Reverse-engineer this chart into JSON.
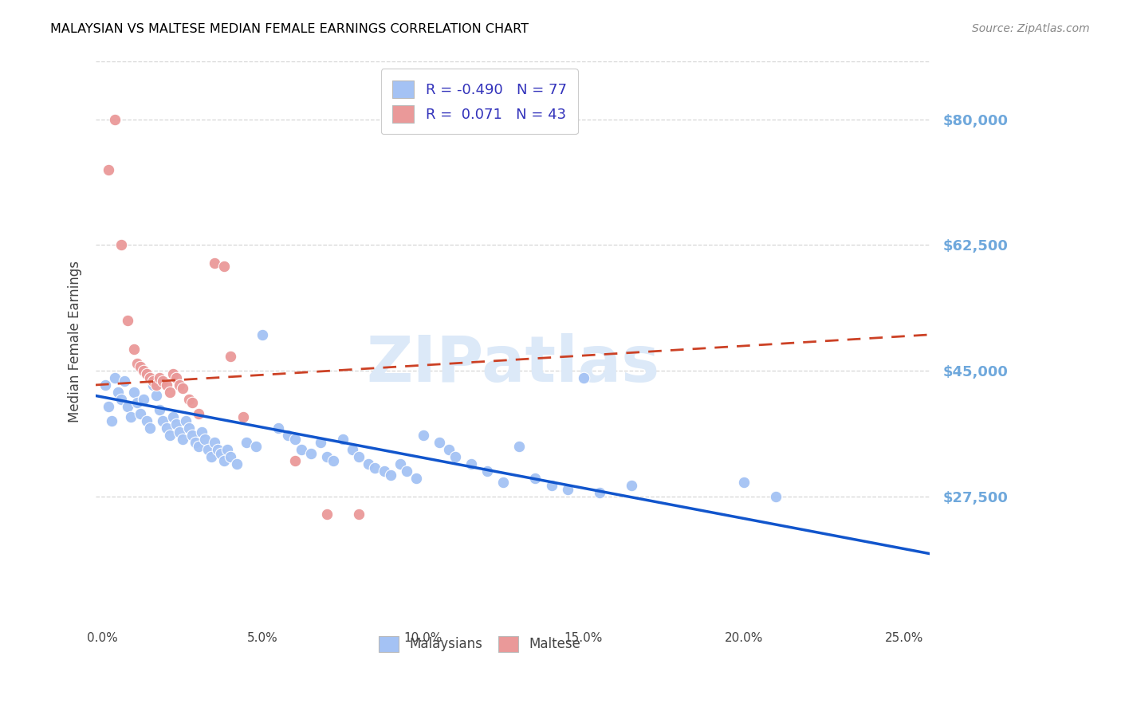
{
  "title": "MALAYSIAN VS MALTESE MEDIAN FEMALE EARNINGS CORRELATION CHART",
  "source": "Source: ZipAtlas.com",
  "ylabel": "Median Female Earnings",
  "xlabel_ticks": [
    "0.0%",
    "5.0%",
    "10.0%",
    "15.0%",
    "20.0%",
    "25.0%"
  ],
  "xlabel_vals": [
    0.0,
    0.05,
    0.1,
    0.15,
    0.2,
    0.25
  ],
  "ylim": [
    10000,
    88000
  ],
  "xlim": [
    -0.002,
    0.258
  ],
  "ytick_vals": [
    27500,
    45000,
    62500,
    80000
  ],
  "ytick_labels": [
    "$27,500",
    "$45,000",
    "$62,500",
    "$80,000"
  ],
  "legend_r_blue": "-0.490",
  "legend_n_blue": "77",
  "legend_r_pink": " 0.071",
  "legend_n_pink": "43",
  "blue_color": "#a4c2f4",
  "pink_color": "#ea9999",
  "line_blue_color": "#1155cc",
  "line_pink_color": "#cc4125",
  "blue_line": [
    [
      -0.002,
      41500
    ],
    [
      0.258,
      19500
    ]
  ],
  "pink_line": [
    [
      -0.002,
      43000
    ],
    [
      0.258,
      50000
    ]
  ],
  "blue_scatter": [
    [
      0.001,
      43000
    ],
    [
      0.002,
      40000
    ],
    [
      0.003,
      38000
    ],
    [
      0.004,
      44000
    ],
    [
      0.005,
      42000
    ],
    [
      0.006,
      41000
    ],
    [
      0.007,
      43500
    ],
    [
      0.008,
      40000
    ],
    [
      0.009,
      38500
    ],
    [
      0.01,
      42000
    ],
    [
      0.011,
      40500
    ],
    [
      0.012,
      39000
    ],
    [
      0.013,
      41000
    ],
    [
      0.014,
      38000
    ],
    [
      0.015,
      37000
    ],
    [
      0.016,
      43000
    ],
    [
      0.017,
      41500
    ],
    [
      0.018,
      39500
    ],
    [
      0.019,
      38000
    ],
    [
      0.02,
      37000
    ],
    [
      0.021,
      36000
    ],
    [
      0.022,
      38500
    ],
    [
      0.023,
      37500
    ],
    [
      0.024,
      36500
    ],
    [
      0.025,
      35500
    ],
    [
      0.026,
      38000
    ],
    [
      0.027,
      37000
    ],
    [
      0.028,
      36000
    ],
    [
      0.029,
      35000
    ],
    [
      0.03,
      34500
    ],
    [
      0.031,
      36500
    ],
    [
      0.032,
      35500
    ],
    [
      0.033,
      34000
    ],
    [
      0.034,
      33000
    ],
    [
      0.035,
      35000
    ],
    [
      0.036,
      34000
    ],
    [
      0.037,
      33500
    ],
    [
      0.038,
      32500
    ],
    [
      0.039,
      34000
    ],
    [
      0.04,
      33000
    ],
    [
      0.042,
      32000
    ],
    [
      0.045,
      35000
    ],
    [
      0.048,
      34500
    ],
    [
      0.05,
      50000
    ],
    [
      0.055,
      37000
    ],
    [
      0.058,
      36000
    ],
    [
      0.06,
      35500
    ],
    [
      0.062,
      34000
    ],
    [
      0.065,
      33500
    ],
    [
      0.068,
      35000
    ],
    [
      0.07,
      33000
    ],
    [
      0.072,
      32500
    ],
    [
      0.075,
      35500
    ],
    [
      0.078,
      34000
    ],
    [
      0.08,
      33000
    ],
    [
      0.083,
      32000
    ],
    [
      0.085,
      31500
    ],
    [
      0.088,
      31000
    ],
    [
      0.09,
      30500
    ],
    [
      0.093,
      32000
    ],
    [
      0.095,
      31000
    ],
    [
      0.098,
      30000
    ],
    [
      0.1,
      36000
    ],
    [
      0.105,
      35000
    ],
    [
      0.108,
      34000
    ],
    [
      0.11,
      33000
    ],
    [
      0.115,
      32000
    ],
    [
      0.12,
      31000
    ],
    [
      0.125,
      29500
    ],
    [
      0.13,
      34500
    ],
    [
      0.135,
      30000
    ],
    [
      0.14,
      29000
    ],
    [
      0.145,
      28500
    ],
    [
      0.15,
      44000
    ],
    [
      0.155,
      28000
    ],
    [
      0.165,
      29000
    ],
    [
      0.2,
      29500
    ],
    [
      0.21,
      27500
    ]
  ],
  "pink_scatter": [
    [
      0.002,
      73000
    ],
    [
      0.004,
      80000
    ],
    [
      0.006,
      62500
    ],
    [
      0.008,
      52000
    ],
    [
      0.01,
      48000
    ],
    [
      0.011,
      46000
    ],
    [
      0.012,
      45500
    ],
    [
      0.013,
      45000
    ],
    [
      0.014,
      44500
    ],
    [
      0.015,
      44000
    ],
    [
      0.016,
      43500
    ],
    [
      0.017,
      43000
    ],
    [
      0.018,
      44000
    ],
    [
      0.019,
      43500
    ],
    [
      0.02,
      43000
    ],
    [
      0.021,
      42000
    ],
    [
      0.022,
      44500
    ],
    [
      0.023,
      44000
    ],
    [
      0.024,
      43000
    ],
    [
      0.025,
      42500
    ],
    [
      0.027,
      41000
    ],
    [
      0.028,
      40500
    ],
    [
      0.03,
      39000
    ],
    [
      0.035,
      60000
    ],
    [
      0.038,
      59500
    ],
    [
      0.04,
      47000
    ],
    [
      0.044,
      38500
    ],
    [
      0.06,
      32500
    ],
    [
      0.07,
      25000
    ],
    [
      0.08,
      25000
    ]
  ],
  "background_color": "#ffffff",
  "grid_color": "#cccccc",
  "title_color": "#000000",
  "tick_label_color_right": "#6fa8dc",
  "source_color": "#888888",
  "watermark_color": "#dce9f8"
}
